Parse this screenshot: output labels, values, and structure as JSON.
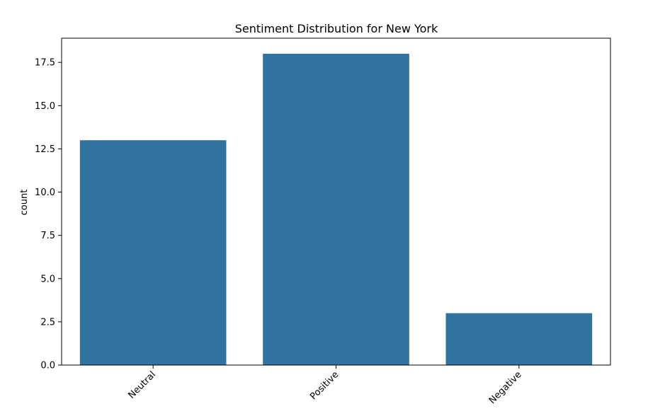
{
  "chart_data": {
    "type": "bar",
    "title": "Sentiment Distribution for New York",
    "xlabel": "",
    "ylabel": "count",
    "categories": [
      "Neutral",
      "Positive",
      "Negative"
    ],
    "values": [
      13,
      18,
      3
    ],
    "ylim": [
      0,
      18.9
    ],
    "yticks": [
      0.0,
      2.5,
      5.0,
      7.5,
      10.0,
      12.5,
      15.0,
      17.5
    ],
    "ytick_labels": [
      "0.0",
      "2.5",
      "5.0",
      "7.5",
      "10.0",
      "12.5",
      "15.0",
      "17.5"
    ],
    "grid": false,
    "bar_color": "#3274a1"
  }
}
